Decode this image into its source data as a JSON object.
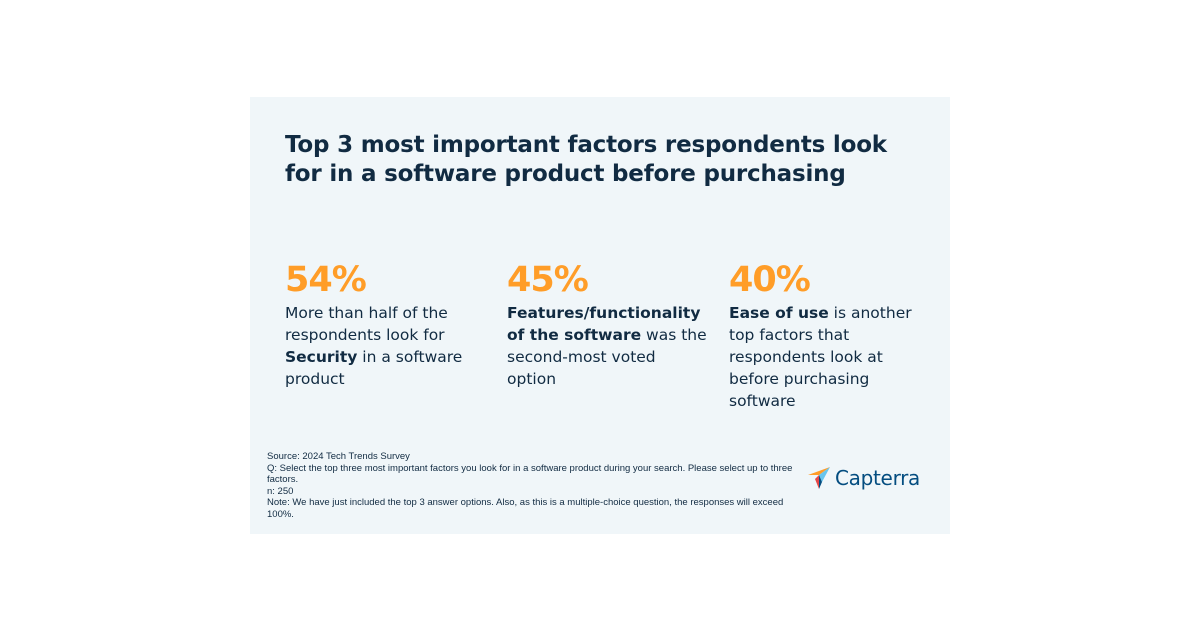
{
  "title": "Top 3 most important factors respondents look for in a software product before purchasing",
  "stats": [
    {
      "value": "54%",
      "text_parts": [
        {
          "text": "More than half of the respondents look for ",
          "bold": false
        },
        {
          "text": "Security",
          "bold": true
        },
        {
          "text": " in a software product",
          "bold": false
        }
      ]
    },
    {
      "value": "45%",
      "text_parts": [
        {
          "text": "Features/functionality of the software",
          "bold": true
        },
        {
          "text": " was the second-most voted option",
          "bold": false
        }
      ]
    },
    {
      "value": "40%",
      "text_parts": [
        {
          "text": "Ease of use",
          "bold": true
        },
        {
          "text": " is another top factors that respondents look at before purchasing software",
          "bold": false
        }
      ]
    }
  ],
  "footnotes": {
    "source": "Source: 2024 Tech Trends Survey",
    "question": "Q: Select the top three most important factors you look for in a software product during your search. Please select up to three factors.",
    "n": "n: 250",
    "note": "Note: We have just included the top 3 answer options. Also, as this is a multiple-choice question, the responses will exceed 100%."
  },
  "logo": {
    "text": "Capterra",
    "icon": "capterra-arrow-icon",
    "colors": [
      "#ff9d28",
      "#68c5ed",
      "#044d80",
      "#e54747"
    ]
  },
  "colors": {
    "background": "#f0f6f9",
    "heading": "#112b42",
    "accent": "#ff9d28"
  },
  "chart_data": {
    "type": "table",
    "title": "Top 3 most important factors respondents look for in a software product before purchasing",
    "categories": [
      "Security",
      "Features/functionality of the software",
      "Ease of use"
    ],
    "values": [
      54,
      45,
      40
    ]
  }
}
